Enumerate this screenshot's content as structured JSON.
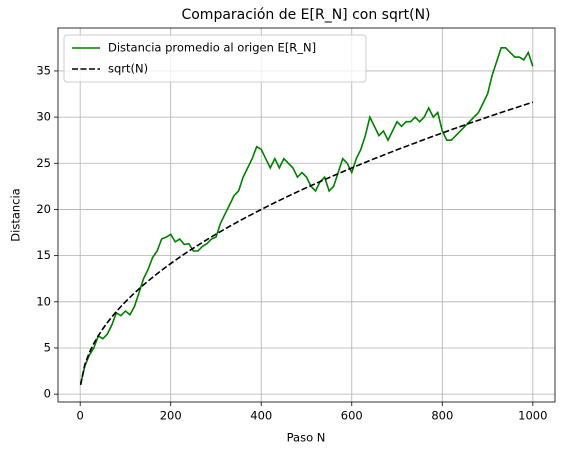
{
  "chart_data": {
    "type": "line",
    "title": "Comparación de E[R_N] con sqrt(N)",
    "xlabel": "Paso N",
    "ylabel": "Distancia",
    "x": [
      1,
      10,
      20,
      30,
      40,
      50,
      60,
      70,
      80,
      90,
      100,
      110,
      120,
      130,
      140,
      150,
      160,
      170,
      180,
      190,
      200,
      210,
      220,
      230,
      240,
      250,
      260,
      270,
      280,
      290,
      300,
      310,
      320,
      330,
      340,
      350,
      360,
      370,
      380,
      390,
      400,
      410,
      420,
      430,
      440,
      450,
      460,
      470,
      480,
      490,
      500,
      510,
      520,
      530,
      540,
      550,
      560,
      570,
      580,
      590,
      600,
      610,
      620,
      630,
      640,
      650,
      660,
      670,
      680,
      690,
      700,
      710,
      720,
      730,
      740,
      750,
      760,
      770,
      780,
      790,
      800,
      810,
      820,
      830,
      840,
      850,
      860,
      870,
      880,
      890,
      900,
      910,
      920,
      930,
      940,
      950,
      960,
      970,
      980,
      990,
      1000
    ],
    "series": [
      {
        "name": "Distancia promedio al origen E[R_N]",
        "color": "#008000",
        "linestyle": "solid",
        "values": [
          1.1,
          3,
          4.2,
          5,
          6.3,
          6,
          6.5,
          7.5,
          8.8,
          8.5,
          9,
          8.6,
          9.5,
          11,
          12.5,
          13.5,
          14.8,
          15.5,
          16.8,
          17,
          17.3,
          16.5,
          16.8,
          16.2,
          16.3,
          15.5,
          15.5,
          16,
          16.3,
          16.8,
          17,
          18.5,
          19.5,
          20.5,
          21.5,
          22,
          23.5,
          24.5,
          25.5,
          26.8,
          26.5,
          25.5,
          24.5,
          25.5,
          24.5,
          25.5,
          25,
          24.5,
          23.5,
          24,
          23.5,
          22.5,
          22,
          23,
          23.5,
          22,
          22.5,
          24,
          25.5,
          25,
          24,
          25.5,
          26.5,
          28,
          30,
          29,
          28,
          28.5,
          27.5,
          28.5,
          29.5,
          29,
          29.5,
          29.5,
          30,
          29.5,
          30,
          31,
          30,
          30.5,
          28.5,
          27.5,
          27.5,
          28,
          28.5,
          29,
          29.5,
          30,
          30.5,
          31.5,
          32.5,
          34.5,
          36,
          37.5,
          37.5,
          37,
          36.5,
          36.5,
          36.2,
          37,
          35.5
        ]
      },
      {
        "name": "sqrt(N)",
        "color": "#000000",
        "linestyle": "dashed",
        "values": [
          1,
          3.16,
          4.47,
          5.48,
          6.32,
          7.07,
          7.75,
          8.37,
          8.94,
          9.49,
          10,
          10.49,
          10.95,
          11.4,
          11.83,
          12.25,
          12.65,
          13.04,
          13.42,
          13.78,
          14.14,
          14.49,
          14.83,
          15.17,
          15.49,
          15.81,
          16.12,
          16.43,
          16.73,
          17.03,
          17.32,
          17.61,
          17.89,
          18.17,
          18.44,
          18.71,
          18.97,
          19.24,
          19.49,
          19.75,
          20,
          20.25,
          20.49,
          20.74,
          20.98,
          21.21,
          21.45,
          21.68,
          21.91,
          22.14,
          22.36,
          22.58,
          22.8,
          23.02,
          23.24,
          23.45,
          23.66,
          23.87,
          24.08,
          24.29,
          24.49,
          24.7,
          24.9,
          25.1,
          25.3,
          25.5,
          25.69,
          25.88,
          26.08,
          26.27,
          26.46,
          26.65,
          26.83,
          27.02,
          27.2,
          27.39,
          27.57,
          27.75,
          27.93,
          28.11,
          28.28,
          28.46,
          28.64,
          28.81,
          28.98,
          29.15,
          29.33,
          29.5,
          29.66,
          29.83,
          30,
          30.17,
          30.33,
          30.5,
          30.66,
          30.82,
          30.98,
          31.14,
          31.3,
          31.46,
          31.62
        ]
      }
    ],
    "xlim": [
      -49,
      1049
    ],
    "xticks": [
      0,
      200,
      400,
      600,
      800,
      1000
    ],
    "ylim": [
      -0.85,
      39.65
    ],
    "yticks": [
      0,
      5,
      10,
      15,
      20,
      25,
      30,
      35
    ],
    "grid": true,
    "legend": "upper left"
  }
}
